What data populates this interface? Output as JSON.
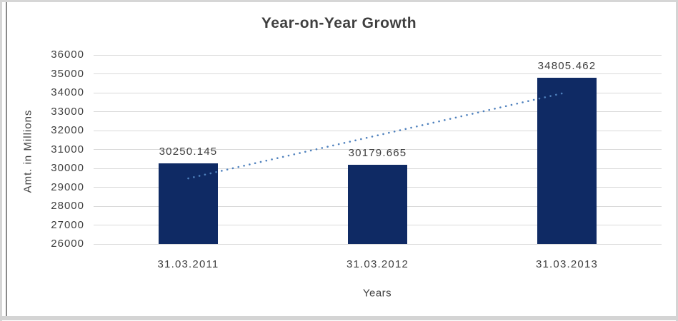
{
  "chart_data": {
    "type": "bar",
    "title": "Year-on-Year Growth",
    "xlabel": "Years",
    "ylabel": "Amt. in Millions",
    "categories": [
      "31.03.2011",
      "31.03.2012",
      "31.03.2013"
    ],
    "values": [
      30250.145,
      30179.665,
      34805.462
    ],
    "data_labels": [
      "30250.145",
      "30179.665",
      "34805.462"
    ],
    "ylim": [
      26000,
      36000
    ],
    "ytick_step": 1000,
    "grid": true,
    "legend_position": "none",
    "bar_color": "#0f2a64",
    "trendline": {
      "type": "linear_regression",
      "style": "dotted",
      "color": "#4f81bd"
    },
    "text_color": "#404040",
    "gridline_color": "#d9d9d9"
  }
}
